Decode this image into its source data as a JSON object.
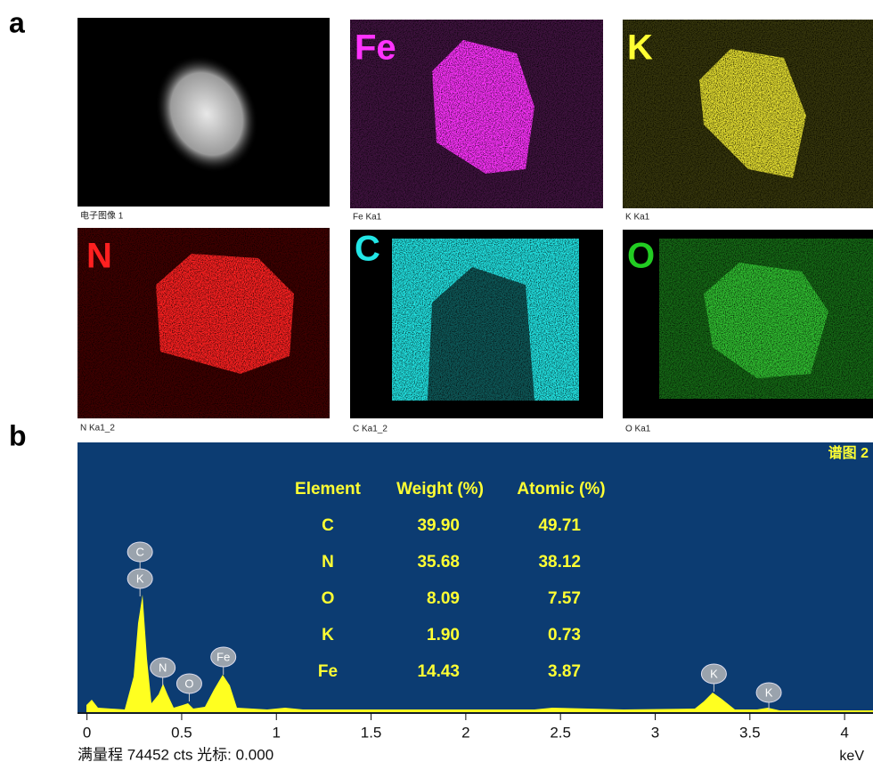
{
  "panels": {
    "a": "a",
    "b": "b"
  },
  "maps": [
    {
      "caption": "电子图像 1"
    },
    {
      "element": "Fe",
      "caption": "Fe Ka1"
    },
    {
      "element": "K",
      "caption": "K Ka1"
    },
    {
      "element": "N",
      "caption": "N Ka1_2"
    },
    {
      "element": "C",
      "caption": "C Ka1_2"
    },
    {
      "element": "O",
      "caption": "O Ka1"
    }
  ],
  "spectrum": {
    "title": "谱图 2",
    "xlim": [
      -0.05,
      4.15
    ],
    "xticks": [
      0,
      0.5,
      1,
      1.5,
      2,
      2.5,
      3,
      3.5,
      4
    ],
    "x_label": "keV",
    "footer": "满量程 74452 cts 光标: 0.000",
    "peaks": [
      {
        "label": "C",
        "x": 0.28
      },
      {
        "label": "K",
        "x": 0.28
      },
      {
        "label": "N",
        "x": 0.4
      },
      {
        "label": "O",
        "x": 0.54
      },
      {
        "label": "Fe",
        "x": 0.72
      },
      {
        "label": "K",
        "x": 3.31
      },
      {
        "label": "K",
        "x": 3.6
      }
    ],
    "table": {
      "header": [
        "Element",
        "Weight (%)",
        "Atomic (%)"
      ],
      "rows": [
        [
          "C",
          "39.90",
          "49.71"
        ],
        [
          "N",
          "35.68",
          "38.12"
        ],
        [
          "O",
          "8.09",
          "7.57"
        ],
        [
          "K",
          "1.90",
          "0.73"
        ],
        [
          "Fe",
          "14.43",
          "3.87"
        ]
      ]
    }
  }
}
